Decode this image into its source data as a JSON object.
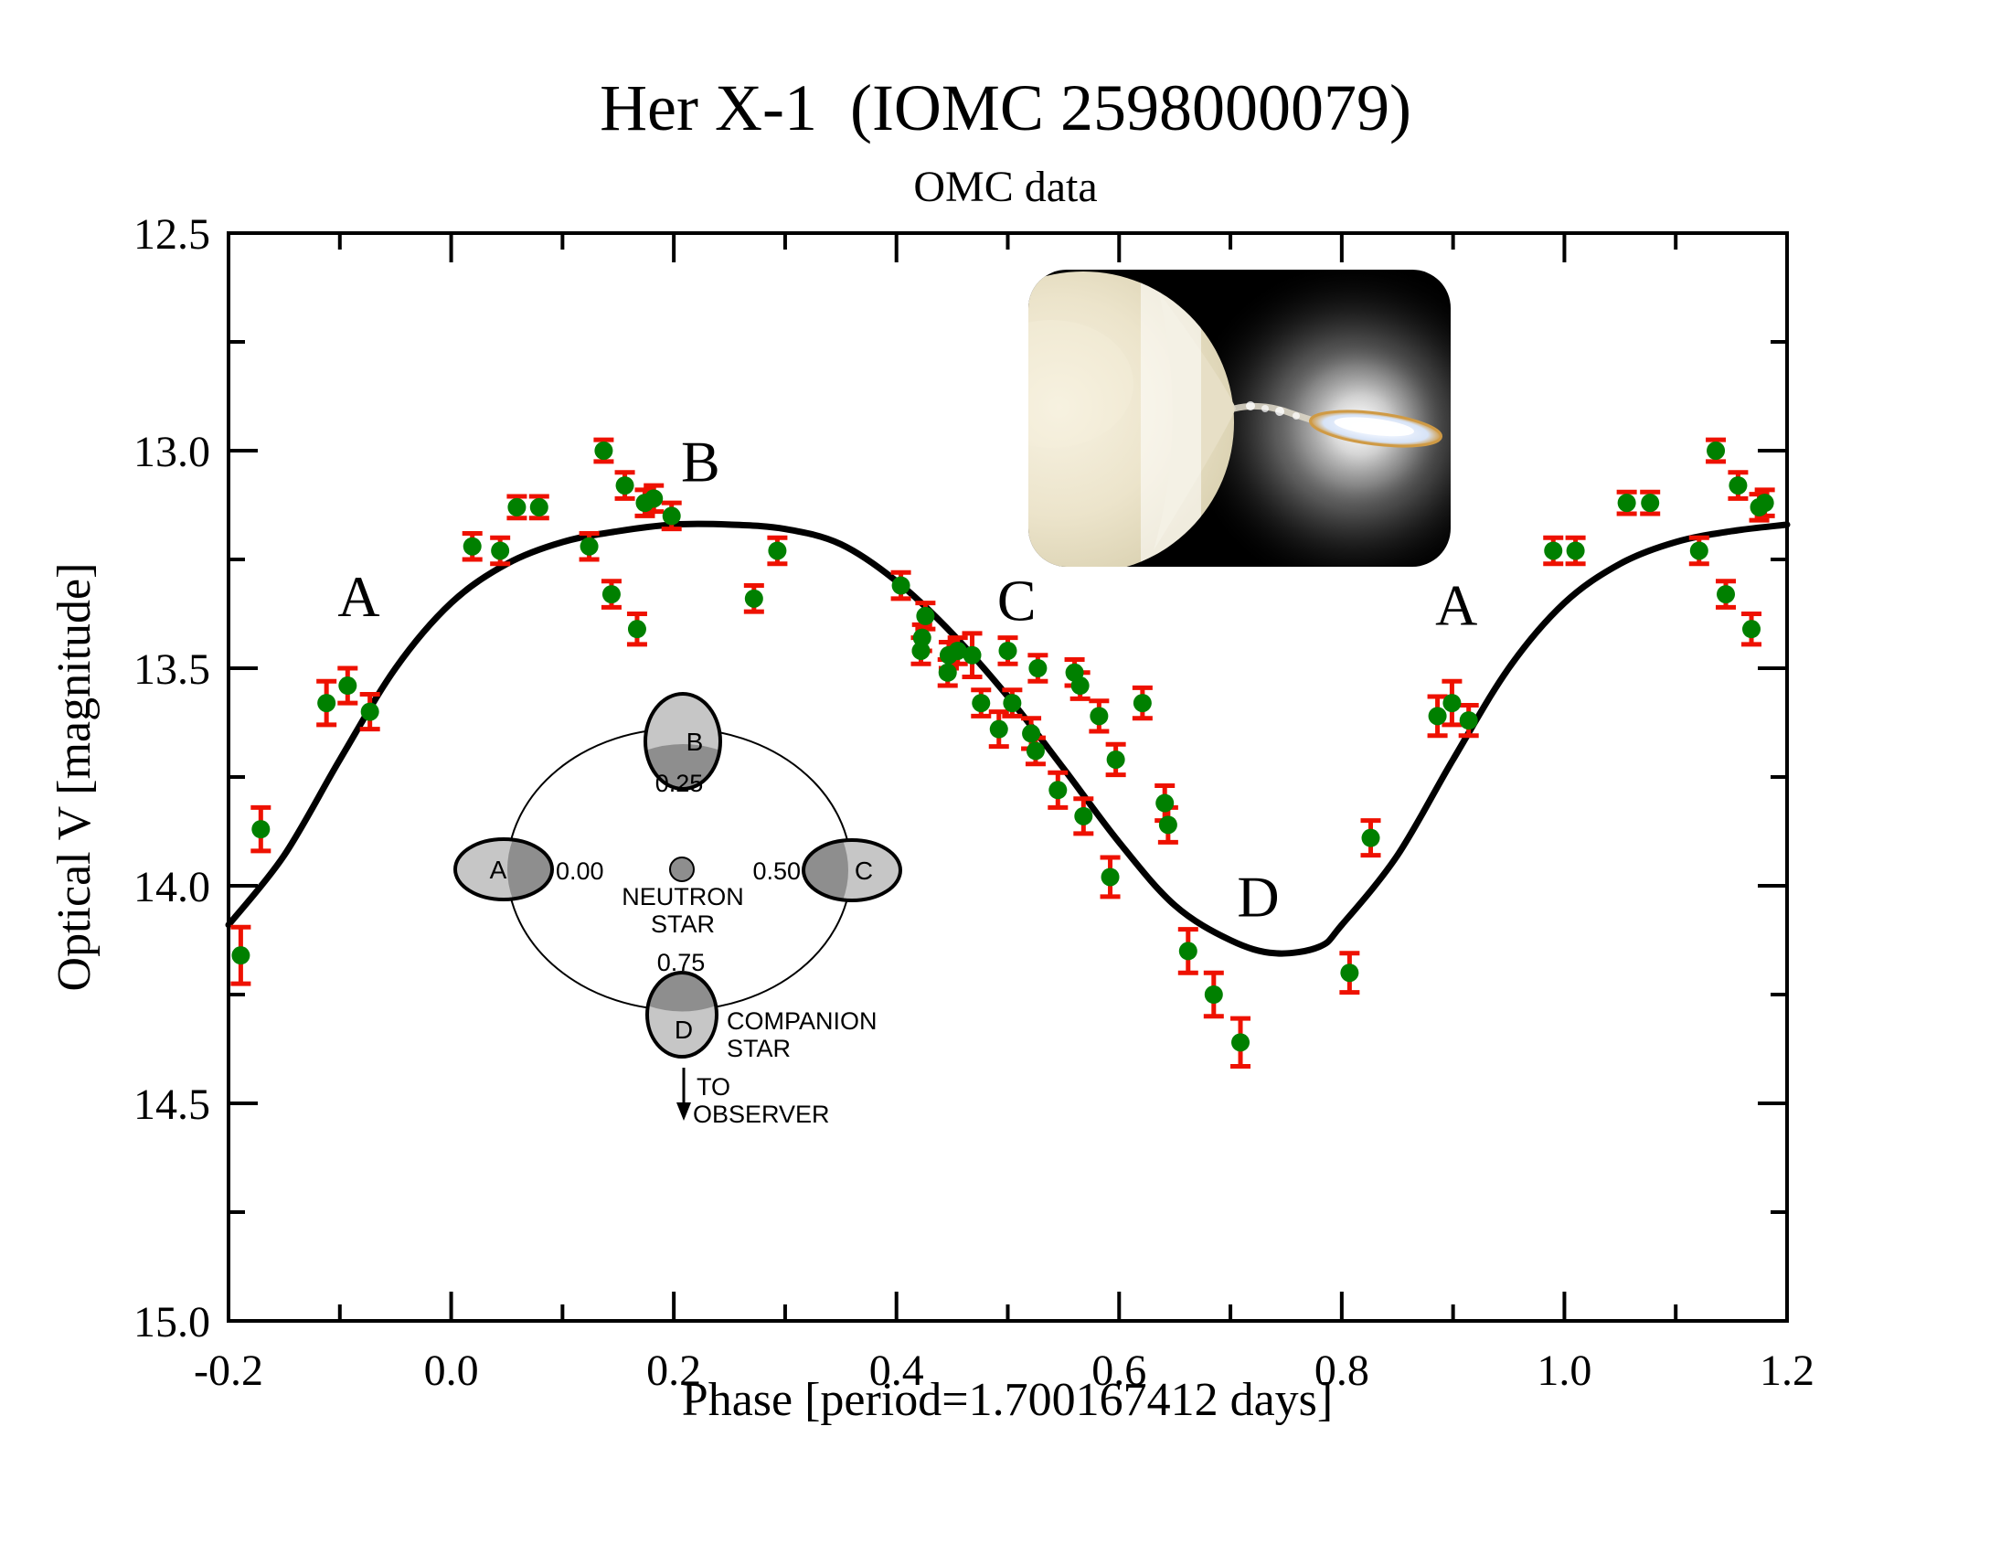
{
  "title": "Her X-1  (IOMC 2598000079)",
  "subtitle": "OMC data",
  "colors": {
    "point_green": "#008000",
    "error_red": "#ee1100",
    "curve_black": "#000000",
    "diagram_gray_light": "#c6c6c6",
    "diagram_gray_dark": "#8e8e8e",
    "photo_background": "#000000",
    "photo_star_cream": "#ece4cb",
    "photo_disk_white": "#f2f7ff",
    "photo_disk_rim_orange": "#cf9a45"
  },
  "chart_data": {
    "type": "scatter",
    "title": "Her X-1  (IOMC 2598000079)",
    "subtitle": "OMC data",
    "xlabel": "Phase [period=1.700167412 days]",
    "ylabel": "Optical V [magnitude]",
    "xlim": [
      -0.2,
      1.2
    ],
    "ylim": [
      15.0,
      12.5
    ],
    "y_axis_inverted": true,
    "grid": false,
    "legend": "none",
    "x_ticks": [
      {
        "v": -0.2,
        "label": "-0.2"
      },
      {
        "v": 0.0,
        "label": "0.0"
      },
      {
        "v": 0.2,
        "label": "0.2"
      },
      {
        "v": 0.4,
        "label": "0.4"
      },
      {
        "v": 0.6,
        "label": "0.6"
      },
      {
        "v": 0.8,
        "label": "0.8"
      },
      {
        "v": 1.0,
        "label": "1.0"
      },
      {
        "v": 1.2,
        "label": "1.2"
      }
    ],
    "y_ticks": [
      {
        "v": 12.5,
        "label": "12.5"
      },
      {
        "v": 13.0,
        "label": "13.0"
      },
      {
        "v": 13.5,
        "label": "13.5"
      },
      {
        "v": 14.0,
        "label": "14.0"
      },
      {
        "v": 14.5,
        "label": "14.5"
      },
      {
        "v": 15.0,
        "label": "15.0"
      }
    ],
    "x_minor_step": 0.1,
    "y_minor_step": 0.25,
    "point_format": [
      "phase",
      "magnitude",
      "error"
    ],
    "points": [
      [
        -0.189,
        14.16,
        0.065
      ],
      [
        -0.171,
        13.87,
        0.05
      ],
      [
        -0.112,
        13.58,
        0.05
      ],
      [
        -0.093,
        13.54,
        0.04
      ],
      [
        -0.073,
        13.6,
        0.04
      ],
      [
        0.019,
        13.22,
        0.03
      ],
      [
        0.044,
        13.23,
        0.03
      ],
      [
        0.059,
        13.13,
        0.025
      ],
      [
        0.079,
        13.13,
        0.025
      ],
      [
        0.124,
        13.22,
        0.03
      ],
      [
        0.137,
        13.0,
        0.025
      ],
      [
        0.156,
        13.08,
        0.03
      ],
      [
        0.144,
        13.33,
        0.03
      ],
      [
        0.167,
        13.41,
        0.035
      ],
      [
        0.174,
        13.12,
        0.03
      ],
      [
        0.182,
        13.11,
        0.03
      ],
      [
        0.198,
        13.15,
        0.03
      ],
      [
        0.272,
        13.34,
        0.03
      ],
      [
        0.293,
        13.23,
        0.03
      ],
      [
        0.404,
        13.31,
        0.03
      ],
      [
        0.426,
        13.38,
        0.03
      ],
      [
        0.423,
        13.43,
        0.03
      ],
      [
        0.422,
        13.46,
        0.03
      ],
      [
        0.447,
        13.47,
        0.03
      ],
      [
        0.455,
        13.46,
        0.03
      ],
      [
        0.468,
        13.47,
        0.05
      ],
      [
        0.446,
        13.51,
        0.03
      ],
      [
        0.476,
        13.58,
        0.03
      ],
      [
        0.5,
        13.46,
        0.03
      ],
      [
        0.504,
        13.58,
        0.03
      ],
      [
        0.492,
        13.64,
        0.04
      ],
      [
        0.527,
        13.5,
        0.03
      ],
      [
        0.521,
        13.65,
        0.035
      ],
      [
        0.525,
        13.69,
        0.03
      ],
      [
        0.56,
        13.51,
        0.03
      ],
      [
        0.565,
        13.54,
        0.03
      ],
      [
        0.545,
        13.78,
        0.04
      ],
      [
        0.582,
        13.61,
        0.035
      ],
      [
        0.568,
        13.84,
        0.04
      ],
      [
        0.592,
        13.98,
        0.045
      ],
      [
        0.597,
        13.71,
        0.035
      ],
      [
        0.621,
        13.58,
        0.035
      ],
      [
        0.641,
        13.81,
        0.04
      ],
      [
        0.644,
        13.86,
        0.04
      ],
      [
        0.662,
        14.15,
        0.05
      ],
      [
        0.685,
        14.25,
        0.05
      ],
      [
        0.709,
        14.36,
        0.055
      ],
      [
        0.807,
        14.2,
        0.045
      ],
      [
        0.826,
        13.89,
        0.04
      ],
      [
        0.886,
        13.61,
        0.045
      ],
      [
        0.899,
        13.58,
        0.05
      ],
      [
        0.914,
        13.62,
        0.035
      ],
      [
        0.99,
        13.23,
        0.03
      ],
      [
        1.01,
        13.23,
        0.03
      ],
      [
        1.056,
        13.12,
        0.025
      ],
      [
        1.077,
        13.12,
        0.025
      ],
      [
        1.121,
        13.23,
        0.03
      ],
      [
        1.136,
        13.0,
        0.025
      ],
      [
        1.156,
        13.08,
        0.03
      ],
      [
        1.145,
        13.33,
        0.03
      ],
      [
        1.168,
        13.41,
        0.035
      ],
      [
        1.175,
        13.13,
        0.03
      ],
      [
        1.18,
        13.12,
        0.03
      ]
    ],
    "model_curve": [
      [
        -0.2,
        14.09
      ],
      [
        -0.15,
        13.93
      ],
      [
        -0.1,
        13.71
      ],
      [
        -0.05,
        13.5
      ],
      [
        0.0,
        13.35
      ],
      [
        0.05,
        13.26
      ],
      [
        0.1,
        13.21
      ],
      [
        0.15,
        13.185
      ],
      [
        0.2,
        13.17
      ],
      [
        0.25,
        13.17
      ],
      [
        0.3,
        13.18
      ],
      [
        0.35,
        13.215
      ],
      [
        0.4,
        13.3
      ],
      [
        0.45,
        13.42
      ],
      [
        0.5,
        13.565
      ],
      [
        0.55,
        13.73
      ],
      [
        0.6,
        13.9
      ],
      [
        0.65,
        14.045
      ],
      [
        0.7,
        14.125
      ],
      [
        0.74,
        14.155
      ],
      [
        0.78,
        14.14
      ],
      [
        0.8,
        14.09
      ],
      [
        0.85,
        13.93
      ],
      [
        0.9,
        13.71
      ],
      [
        0.95,
        13.5
      ],
      [
        1.0,
        13.35
      ],
      [
        1.05,
        13.26
      ],
      [
        1.1,
        13.21
      ],
      [
        1.15,
        13.185
      ],
      [
        1.2,
        13.17
      ]
    ],
    "phase_labels": [
      {
        "text": "A",
        "phase": -0.083,
        "mag": 13.38
      },
      {
        "text": "B",
        "phase": 0.224,
        "mag": 13.07
      },
      {
        "text": "C",
        "phase": 0.508,
        "mag": 13.39
      },
      {
        "text": "D",
        "phase": 0.725,
        "mag": 14.07
      },
      {
        "text": "A",
        "phase": 0.903,
        "mag": 13.4
      }
    ]
  },
  "inset_diagram": {
    "positions": [
      {
        "letter": "A",
        "phase_text": "0.00"
      },
      {
        "letter": "B",
        "phase_text": "0.25"
      },
      {
        "letter": "C",
        "phase_text": "0.50"
      },
      {
        "letter": "D",
        "phase_text": "0.75"
      }
    ],
    "neutron_star_line1": "NEUTRON",
    "neutron_star_line2": "STAR",
    "companion_line1": "COMPANION",
    "companion_line2": "STAR",
    "observer_line1": "TO",
    "observer_line2": "OBSERVER"
  }
}
